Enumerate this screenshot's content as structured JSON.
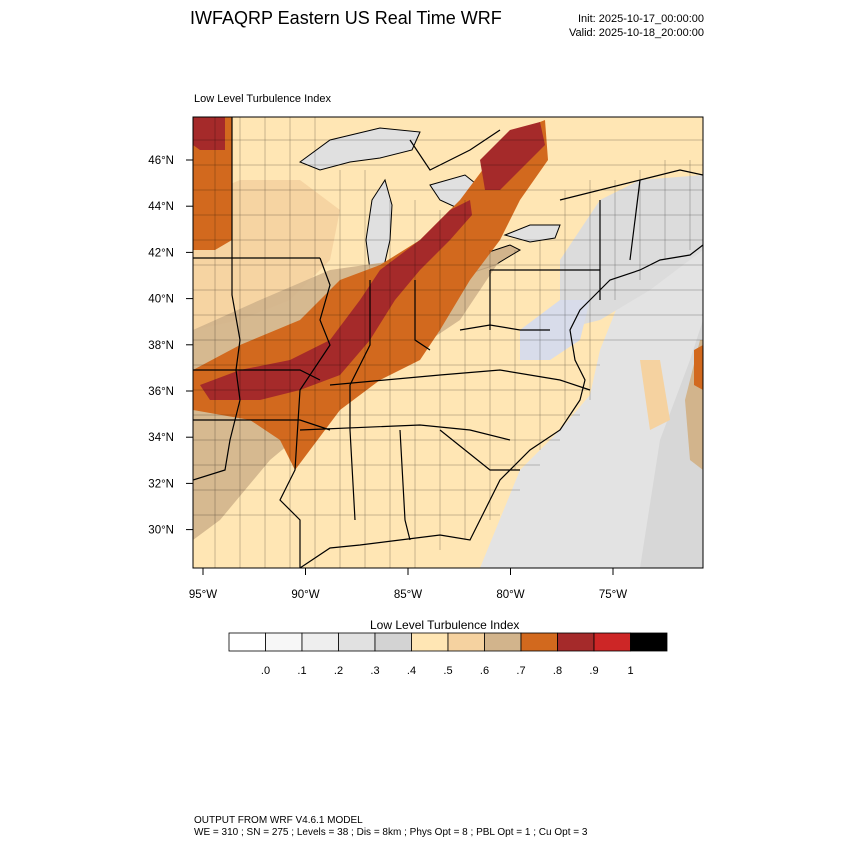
{
  "header": {
    "title": "IWFAQRP Eastern US Real Time WRF",
    "init": "Init: 2025-10-17_00:00:00",
    "valid": "Valid: 2025-10-18_20:00:00"
  },
  "map": {
    "subtitle": "Low Level Turbulence Index",
    "lat_labels": [
      "46°N",
      "44°N",
      "42°N",
      "40°N",
      "38°N",
      "36°N",
      "34°N",
      "32°N",
      "30°N"
    ],
    "lon_labels": [
      "95°W",
      "90°W",
      "85°W",
      "80°W",
      "75°W"
    ]
  },
  "colorbar": {
    "title": "Low Level Turbulence Index",
    "colors": [
      "#ffffff",
      "#f7f7f7",
      "#eeeeee",
      "#e1e1e1",
      "#d3d3d3",
      "#ffe6b4",
      "#f5d2a0",
      "#d2b48c",
      "#d2691e",
      "#a52a2a",
      "#cd2626",
      "#000000"
    ],
    "tick_labels": [
      ".0",
      ".1",
      ".2",
      ".3",
      ".4",
      ".5",
      ".6",
      ".7",
      ".8",
      ".9",
      "1"
    ]
  },
  "footer": {
    "line1": "OUTPUT FROM WRF V4.6.1 MODEL",
    "line2": "WE = 310 ; SN = 275 ; Levels = 38 ; Dis = 8km ; Phys Opt = 8 ; PBL Opt = 1 ; Cu Opt = 3"
  }
}
